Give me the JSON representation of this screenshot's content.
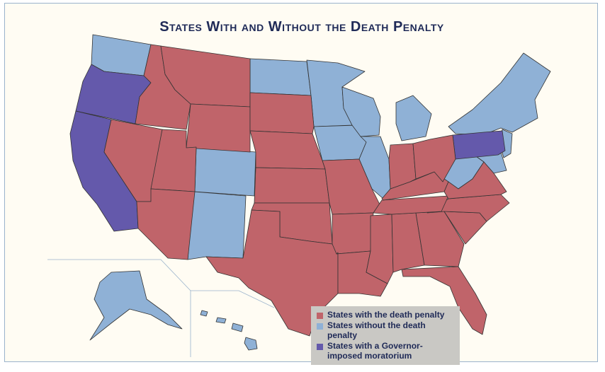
{
  "title": "States With and Without the Death Penalty",
  "colors": {
    "with_death_penalty": "#c0646a",
    "without_death_penalty": "#8fb1d6",
    "moratorium": "#6459ab",
    "border": "#333333"
  },
  "legend": {
    "items": [
      {
        "label": "States with the death penalty",
        "color": "#c0646a"
      },
      {
        "label": "States without the death penalty",
        "color": "#8fb1d6"
      },
      {
        "label": "States with a Governor-imposed moratorium",
        "color": "#6459ab"
      }
    ]
  }
}
